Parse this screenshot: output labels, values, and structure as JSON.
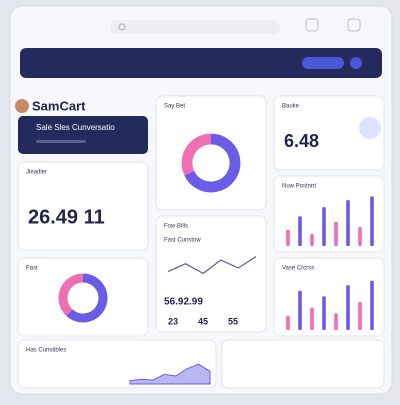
{
  "brand": "SamCart",
  "banner": {
    "title": "Sale Sles Cunversatio"
  },
  "cards": {
    "leader": {
      "title": "Jleadler",
      "value": "26.49 11"
    },
    "fast": {
      "title": "Fast",
      "segments": [
        {
          "color": "#6b5ce7",
          "value": 62
        },
        {
          "color": "#ef6fb4",
          "value": 38
        }
      ]
    },
    "saybet": {
      "title": "Say Bet",
      "segments": [
        {
          "color": "#6b5ce7",
          "value": 68
        },
        {
          "color": "#ef6fb4",
          "value": 32
        }
      ]
    },
    "bills": {
      "title": "Fow Bills",
      "subtitle": "Fast Cunstow",
      "line": [
        40,
        62,
        35,
        72,
        50,
        82
      ],
      "value": "56.92.99",
      "stats": [
        "23",
        "45",
        "55"
      ]
    },
    "bauke": {
      "title": "Bauke",
      "value": "6.48"
    },
    "postnnt": {
      "title": "Nuw Postnnt",
      "bars": [
        30,
        55,
        22,
        72,
        45,
        85,
        35,
        92
      ]
    },
    "crcrss": {
      "title": "Vase Crcrss",
      "bars": [
        25,
        70,
        40,
        60,
        30,
        80,
        50,
        88
      ]
    },
    "cunstibles": {
      "title": "Has Cunstibles",
      "area": [
        10,
        15,
        12,
        30,
        25,
        48,
        62,
        40
      ]
    }
  }
}
